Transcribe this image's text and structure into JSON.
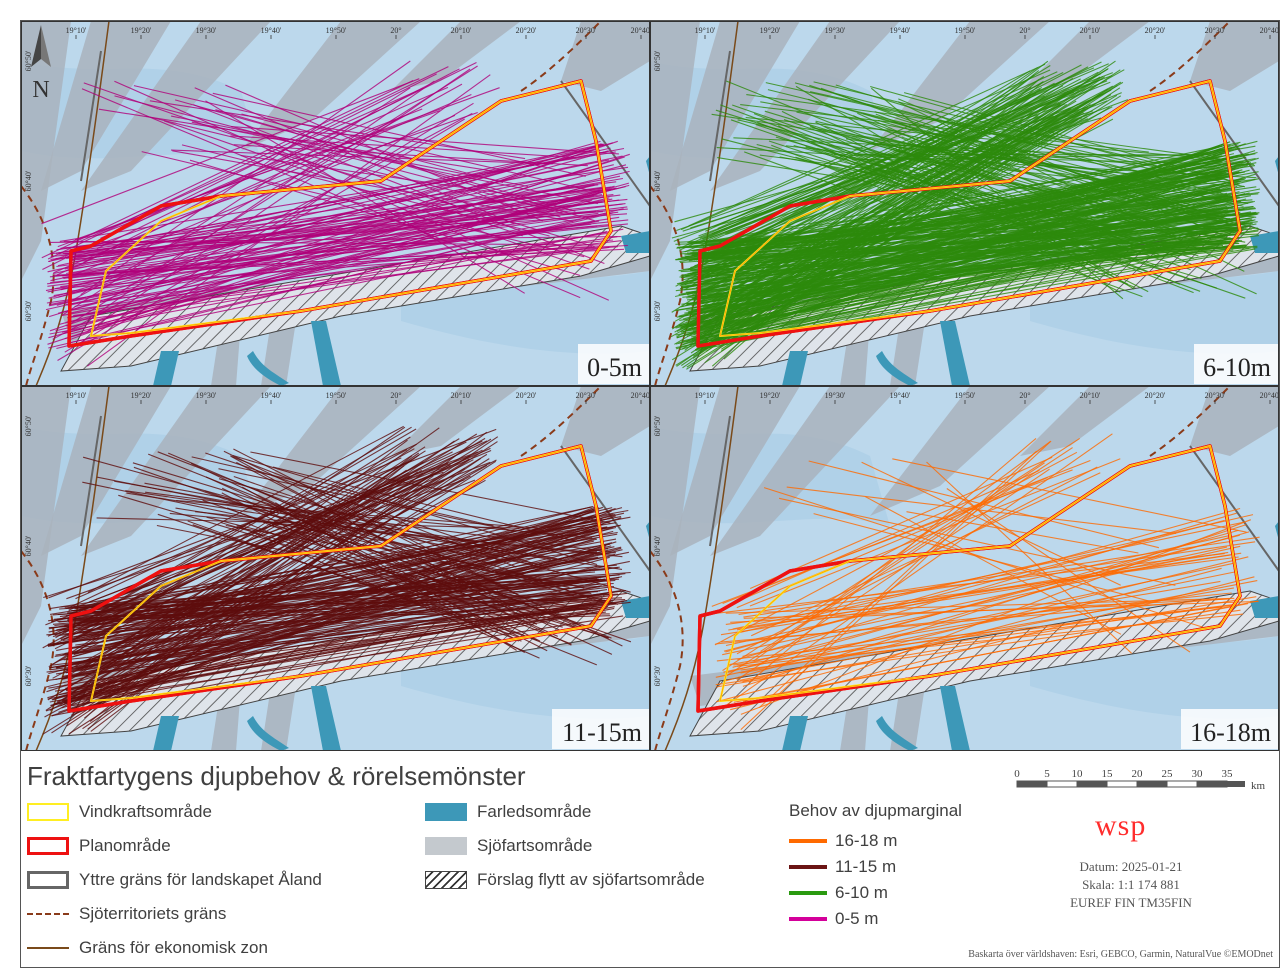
{
  "legend": {
    "title": "Fraktfartygens djupbehov & rörelsemönster",
    "items_left": [
      {
        "label": "Vindkraftsområde",
        "swatch": "yellow-outline"
      },
      {
        "label": "Planområde",
        "swatch": "red-outline"
      },
      {
        "label": "Yttre gräns för landskapet Åland",
        "swatch": "gray-outline"
      },
      {
        "label": "Sjöterritoriets gräns",
        "swatch": "dashed-brown"
      },
      {
        "label": "Gräns för ekonomisk zon",
        "swatch": "solid-brown"
      }
    ],
    "items_mid": [
      {
        "label": "Farledsområde",
        "swatch": "teal-fill"
      },
      {
        "label": "Sjöfartsområde",
        "swatch": "gray-fill"
      },
      {
        "label": "Förslag flytt av sjöfartsområde",
        "swatch": "hatch"
      }
    ],
    "depth_title": "Behov av djupmarginal",
    "depth_items": [
      {
        "label": "16-18 m",
        "color": "#ff6a00"
      },
      {
        "label": "11-15 m",
        "color": "#6b1414"
      },
      {
        "label": "6-10 m",
        "color": "#2a9a10"
      },
      {
        "label": "0-5 m",
        "color": "#d4009a"
      }
    ]
  },
  "panels": [
    {
      "label": "0-5m",
      "track_color": "#b0007a"
    },
    {
      "label": "6-10m",
      "track_color": "#2d8a0c"
    },
    {
      "label": "11-15m",
      "track_color": "#5e0d0d"
    },
    {
      "label": "16-18m",
      "track_color": "#ff6a00"
    }
  ],
  "map": {
    "north_label": "N",
    "lon_ticks": [
      "19°10'",
      "19°20'",
      "19°30'",
      "19°40'",
      "19°50'",
      "20°",
      "20°10'",
      "20°20'",
      "20°30'",
      "20°40'"
    ],
    "lat_ticks": [
      "60°50'",
      "60°40'",
      "60°30'"
    ]
  },
  "scale": {
    "ticks": [
      "0",
      "5",
      "10",
      "15",
      "20",
      "25",
      "30",
      "35"
    ],
    "unit": "km"
  },
  "info": {
    "logo": "wsp",
    "date": "Datum: 2025-01-21",
    "scale": "Skala: 1:1 174 881",
    "crs": "EUREF FIN TM35FIN",
    "credit": "Baskarta över världshaven: Esri, GEBCO, Garmin, NaturalVue ©EMODnet"
  },
  "colors": {
    "sea": "#bcd8ec",
    "shipping": "#a9b3bd",
    "fairway": "#3d98b8",
    "plan": "#ee1111",
    "wind": "#ffee22",
    "boundary": "#666666",
    "territory": "#8a3b1a"
  }
}
